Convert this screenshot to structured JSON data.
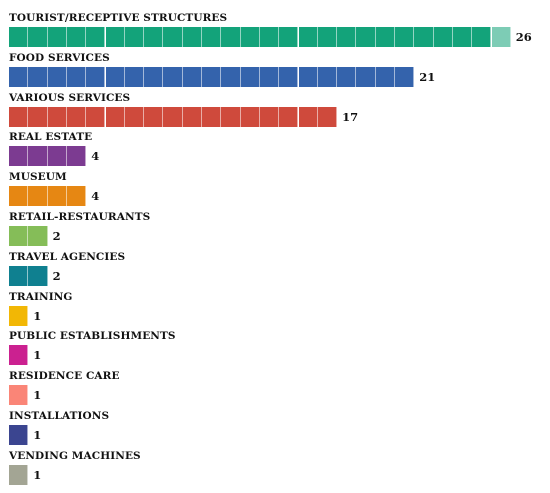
{
  "chart_data": {
    "type": "bar",
    "orientation": "horizontal",
    "categories": [
      "TOURIST/RECEPTIVE STRUCTURES",
      "FOOD SERVICES",
      "VARIOUS SERVICES",
      "REAL ESTATE",
      "MUSEUM",
      "RETAIL-RESTAURANTS",
      "TRAVEL AGENCIES",
      "TRAINING",
      "PUBLIC ESTABLISHMENTS",
      "RESIDENCE CARE",
      "INSTALLATIONS",
      "VENDING MACHINES"
    ],
    "values": [
      26,
      21,
      17,
      4,
      4,
      2,
      2,
      1,
      1,
      1,
      1,
      1
    ],
    "colors": [
      "#13a37a",
      "#3463ac",
      "#cf4a3c",
      "#7c3b91",
      "#e68713",
      "#85bd58",
      "#0f8090",
      "#f2b705",
      "#cb2190",
      "#fa8577",
      "#3b4590",
      "#a3a594"
    ],
    "value_labels": [
      "26",
      "21",
      "17",
      "4",
      "4",
      "2",
      "2",
      "1",
      "1",
      "1",
      "1",
      "1"
    ],
    "grid": false,
    "legend": "none",
    "title": "",
    "xlabel": "",
    "ylabel": ""
  }
}
